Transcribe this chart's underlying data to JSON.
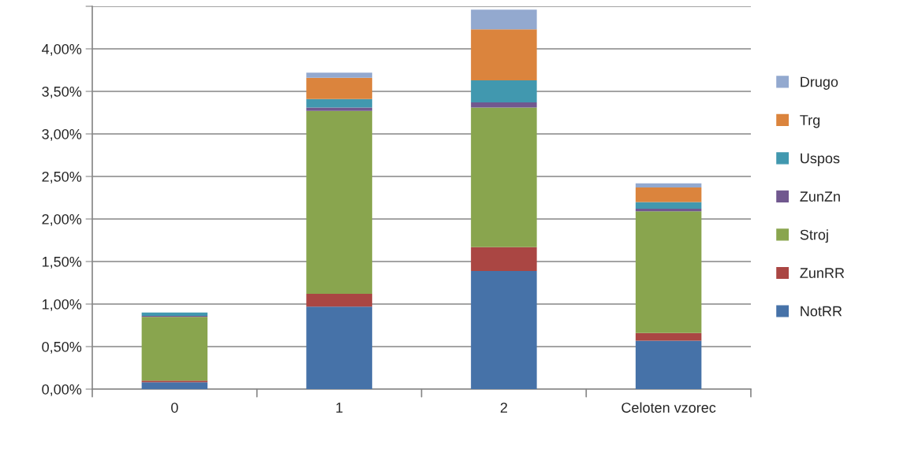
{
  "chart_data": {
    "type": "bar",
    "stacked": true,
    "categories": [
      "0",
      "1",
      "2",
      "Celoten vzorec"
    ],
    "series": [
      {
        "name": "NotRR",
        "color": "#4672a8",
        "values": [
          0.08,
          0.97,
          1.39,
          0.57
        ]
      },
      {
        "name": "ZunRR",
        "color": "#aa4643",
        "values": [
          0.02,
          0.15,
          0.28,
          0.09
        ]
      },
      {
        "name": "Stroj",
        "color": "#89a54e",
        "values": [
          0.75,
          2.15,
          1.64,
          1.43
        ]
      },
      {
        "name": "ZunZn",
        "color": "#71588f",
        "values": [
          0.01,
          0.04,
          0.06,
          0.03
        ]
      },
      {
        "name": "Uspos",
        "color": "#4198af",
        "values": [
          0.04,
          0.1,
          0.26,
          0.08
        ]
      },
      {
        "name": "Trg",
        "color": "#db843d",
        "values": [
          null,
          0.25,
          0.6,
          0.17
        ]
      },
      {
        "name": "Drugo",
        "color": "#93a9cf",
        "values": [
          null,
          0.06,
          0.23,
          0.05
        ]
      }
    ],
    "ylim": [
      0,
      4.5
    ],
    "yticks": [
      {
        "value": 0,
        "label": "0,00%"
      },
      {
        "value": 0.5,
        "label": "0,50%"
      },
      {
        "value": 1,
        "label": "1,00%"
      },
      {
        "value": 1.5,
        "label": "1,50%"
      },
      {
        "value": 2,
        "label": "2,00%"
      },
      {
        "value": 2.5,
        "label": "2,50%"
      },
      {
        "value": 3,
        "label": "3,00%"
      },
      {
        "value": 3.5,
        "label": "3,50%"
      },
      {
        "value": 4,
        "label": "4,00%"
      },
      {
        "value": 4.5,
        "label": null
      }
    ],
    "grid": "y",
    "legend": "right"
  }
}
